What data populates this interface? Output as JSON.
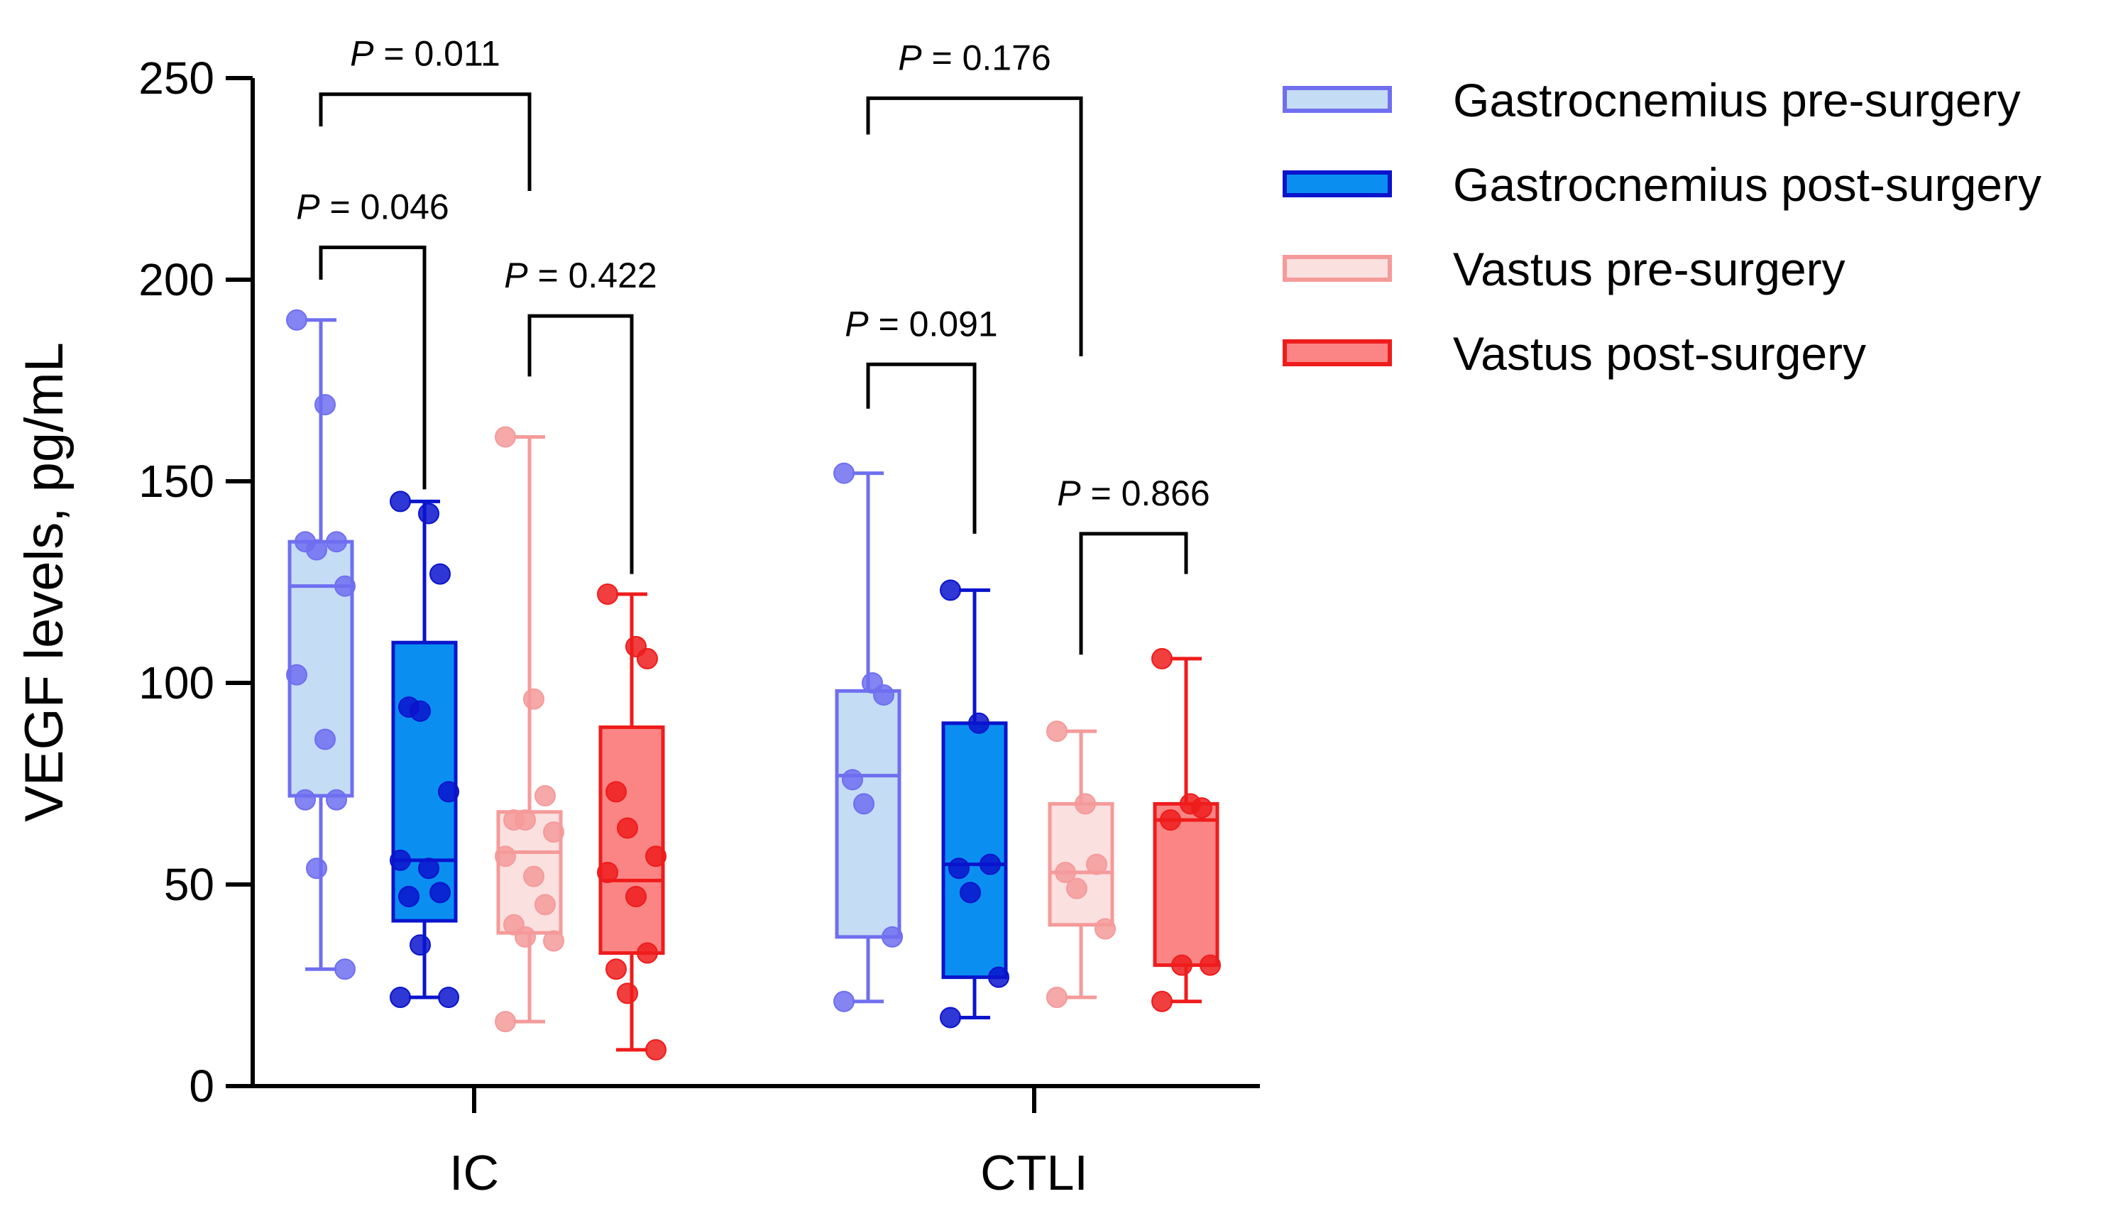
{
  "chart_data": {
    "type": "box",
    "title": "",
    "xlabel": "",
    "ylabel": "VEGF levels, pg/mL",
    "ylim": [
      0,
      250
    ],
    "yticks": [
      "0",
      "50",
      "100",
      "150",
      "200",
      "250"
    ],
    "groups": [
      "IC",
      "CTLI"
    ],
    "series": [
      {
        "name": "Gastrocnemius pre-surgery",
        "fill": "#c5dcf5",
        "stroke": "#6f6ff0"
      },
      {
        "name": "Gastrocnemius post-surgery",
        "fill": "#0a8ff0",
        "stroke": "#0a14cc"
      },
      {
        "name": "Vastus pre-surgery",
        "fill": "#fbe0e0",
        "stroke": "#f59a9a"
      },
      {
        "name": "Vastus post-surgery",
        "fill": "#fb8585",
        "stroke": "#ee1c1c"
      }
    ],
    "boxes": [
      {
        "group": "IC",
        "series": 0,
        "min": 29,
        "q1": 72,
        "median": 124,
        "q3": 135,
        "max": 190,
        "points": [
          190,
          169,
          135,
          135,
          133,
          124,
          102,
          86,
          71,
          71,
          54,
          29
        ]
      },
      {
        "group": "IC",
        "series": 1,
        "min": 22,
        "q1": 41,
        "median": 56,
        "q3": 110,
        "max": 145,
        "points": [
          145,
          142,
          127,
          94,
          93,
          73,
          56,
          54,
          48,
          47,
          35,
          22,
          22
        ]
      },
      {
        "group": "IC",
        "series": 2,
        "min": 16,
        "q1": 38,
        "median": 58,
        "q3": 68,
        "max": 161,
        "points": [
          161,
          96,
          72,
          66,
          66,
          63,
          57,
          52,
          45,
          40,
          37,
          36,
          16
        ]
      },
      {
        "group": "IC",
        "series": 3,
        "min": 9,
        "q1": 33,
        "median": 51,
        "q3": 89,
        "max": 122,
        "points": [
          122,
          109,
          106,
          73,
          64,
          57,
          53,
          47,
          33,
          29,
          23,
          9
        ]
      },
      {
        "group": "CTLI",
        "series": 0,
        "min": 21,
        "q1": 37,
        "median": 77,
        "q3": 98,
        "max": 152,
        "points": [
          152,
          100,
          97,
          76,
          70,
          37,
          21
        ]
      },
      {
        "group": "CTLI",
        "series": 1,
        "min": 17,
        "q1": 27,
        "median": 55,
        "q3": 90,
        "max": 123,
        "points": [
          123,
          90,
          55,
          54,
          48,
          27,
          17
        ]
      },
      {
        "group": "CTLI",
        "series": 2,
        "min": 22,
        "q1": 40,
        "median": 53,
        "q3": 70,
        "max": 88,
        "points": [
          88,
          70,
          55,
          53,
          49,
          39,
          22
        ]
      },
      {
        "group": "CTLI",
        "series": 3,
        "min": 21,
        "q1": 30,
        "median": 66,
        "q3": 70,
        "max": 106,
        "points": [
          106,
          70,
          69,
          66,
          30,
          30,
          21
        ]
      }
    ],
    "comparisons": [
      {
        "label": "P = 0.046",
        "box_a": 0,
        "box_b": 1,
        "level": 208,
        "drop_a": 200,
        "drop_b": 148
      },
      {
        "label": "P = 0.011",
        "box_a": 0,
        "box_b": 2,
        "level": 246,
        "drop_a": 238,
        "drop_b": 222
      },
      {
        "label": "P = 0.422",
        "box_a": 2,
        "box_b": 3,
        "level": 191,
        "drop_a": 176,
        "drop_b": 127
      },
      {
        "label": "P = 0.091",
        "box_a": 4,
        "box_b": 5,
        "level": 179,
        "drop_a": 168,
        "drop_b": 137
      },
      {
        "label": "P = 0.176",
        "box_a": 4,
        "box_b": 6,
        "level": 245,
        "drop_a": 236,
        "drop_b": 181
      },
      {
        "label": "P = 0.866",
        "box_a": 6,
        "box_b": 7,
        "level": 137,
        "drop_a": 107,
        "drop_b": 127
      }
    ]
  }
}
